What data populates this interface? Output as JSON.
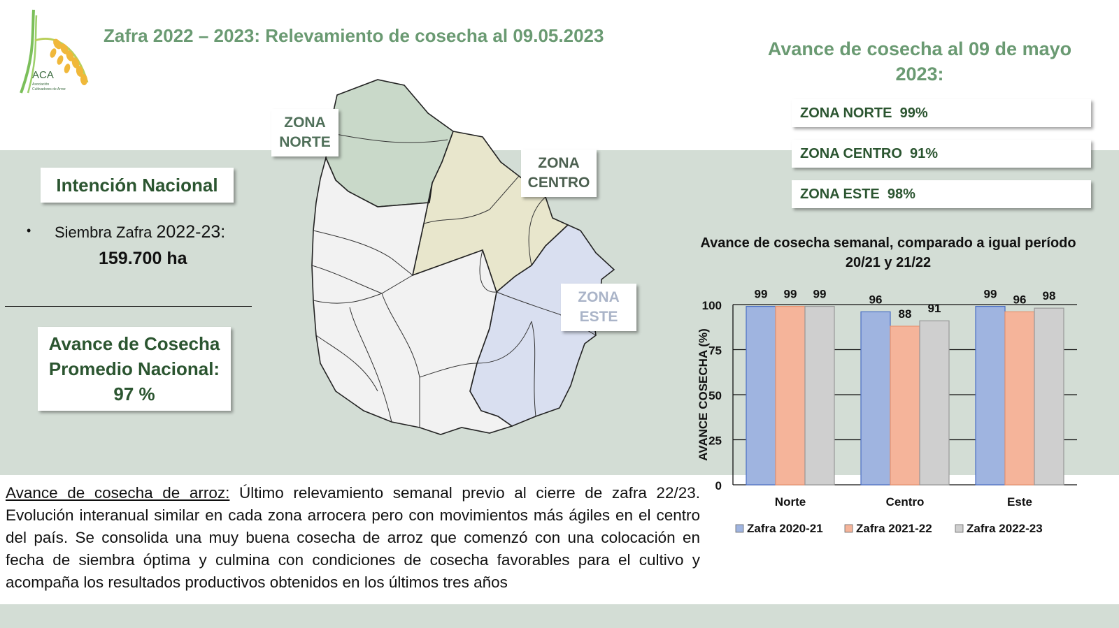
{
  "header": {
    "title": "Zafra 2022 – 2023: Relevamiento de cosecha al 09.05.2023",
    "logo_text": "ACA",
    "logo_sub1": "Asociación",
    "logo_sub2": "Cultivadores de Arroz"
  },
  "left": {
    "intencion_label": "Intención Nacional",
    "bullet": "•",
    "siembra_label": "Siembra Zafra ",
    "siembra_year": "2022-23:",
    "siembra_value": "159.700 ha",
    "avance_line1": "Avance de Cosecha",
    "avance_line2": "Promedio Nacional:",
    "avance_line3": "97 %"
  },
  "map": {
    "zona_norte_1": "ZONA",
    "zona_norte_2": "NORTE",
    "zona_centro_1": "ZONA",
    "zona_centro_2": "CENTRO",
    "zona_este_1": "ZONA",
    "zona_este_2": "ESTE",
    "colors": {
      "norte": "#c9d9c9",
      "centro": "#e8e6cc",
      "este": "#d9dff0",
      "other": "#f2f2f2"
    }
  },
  "right": {
    "title_line1": "Avance de cosecha al 09 de mayo",
    "title_line2": "2023:",
    "zones": [
      {
        "label": "ZONA NORTE  99%"
      },
      {
        "label": "ZONA CENTRO  91%"
      },
      {
        "label": "ZONA ESTE  98%"
      }
    ]
  },
  "chart_title_line1": "Avance de cosecha  semanal, comparado a igual período",
  "chart_title_line2": "20/21 y 21/22",
  "chart_data": {
    "type": "bar",
    "categories": [
      "Norte",
      "Centro",
      "Este"
    ],
    "series": [
      {
        "name": "Zafra 2020-21",
        "values": [
          99,
          96,
          99
        ],
        "color": "#9fb4e0"
      },
      {
        "name": "Zafra 2021-22",
        "values": [
          99,
          88,
          96
        ],
        "color": "#f5b49a"
      },
      {
        "name": "Zafra 2022-23",
        "values": [
          99,
          91,
          98
        ],
        "color": "#cfcfcf"
      }
    ],
    "ylabel": "AVANCE COSECHA (%)",
    "ylim": [
      0,
      100
    ],
    "yticks": [
      0,
      25,
      50,
      75,
      100
    ],
    "grid": true,
    "legend": "bottom"
  },
  "bottom": {
    "lead": "Avance de cosecha de arroz:",
    "text": " Último relevamiento semanal previo al cierre de zafra 22/23. Evolución interanual similar en cada zona arrocera pero con movimientos más ágiles en el centro del país. Se consolida una muy buena cosecha de arroz que comenzó con una colocación en fecha de siembra óptima y culmina con condiciones de cosecha favorables para el cultivo y acompaña los resultados productivos obtenidos en los últimos tres años"
  }
}
